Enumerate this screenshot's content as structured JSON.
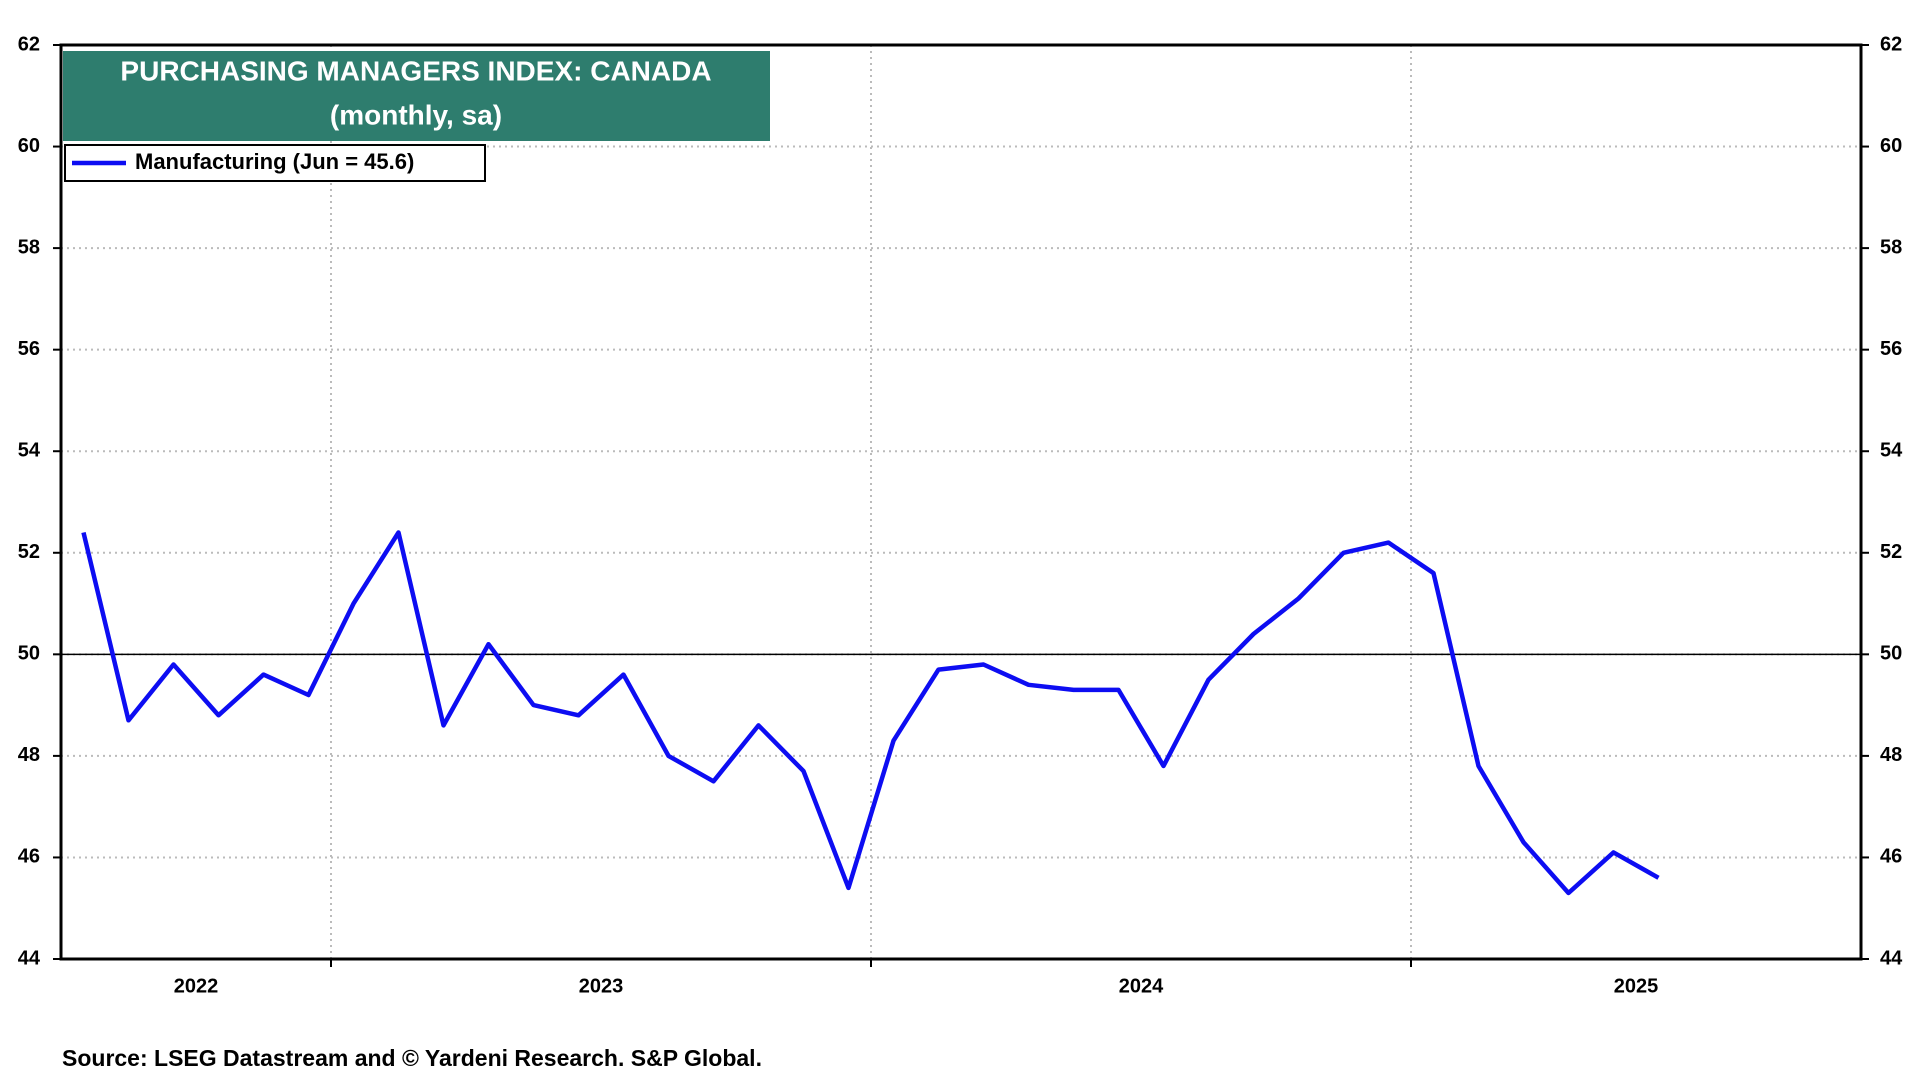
{
  "chart_data": {
    "type": "line",
    "title": "PURCHASING MANAGERS INDEX: CANADA",
    "subtitle": "(monthly, sa)",
    "source": "Source: LSEG Datastream and © Yardeni Research. S&P Global.",
    "x": [
      "2022-07",
      "2022-08",
      "2022-09",
      "2022-10",
      "2022-11",
      "2022-12",
      "2023-01",
      "2023-02",
      "2023-03",
      "2023-04",
      "2023-05",
      "2023-06",
      "2023-07",
      "2023-08",
      "2023-09",
      "2023-10",
      "2023-11",
      "2023-12",
      "2024-01",
      "2024-02",
      "2024-03",
      "2024-04",
      "2024-05",
      "2024-06",
      "2024-07",
      "2024-08",
      "2024-09",
      "2024-10",
      "2024-11",
      "2024-12",
      "2025-01",
      "2025-02",
      "2025-03",
      "2025-04",
      "2025-05",
      "2025-06"
    ],
    "series": [
      {
        "name": "Manufacturing (Jun = 45.6)",
        "color": "#0d0df2",
        "values": [
          52.4,
          48.7,
          49.8,
          48.8,
          49.6,
          49.2,
          51.0,
          52.4,
          48.6,
          50.2,
          49.0,
          48.8,
          49.6,
          48.0,
          47.5,
          48.6,
          47.7,
          45.4,
          48.3,
          49.7,
          49.8,
          49.4,
          49.3,
          49.3,
          47.8,
          49.5,
          50.4,
          51.1,
          52.0,
          52.2,
          51.6,
          47.8,
          46.3,
          45.3,
          46.1,
          45.6
        ]
      }
    ],
    "xlim": [
      "2022-07",
      "2025-10"
    ],
    "xticks": [
      2022,
      2023,
      2024,
      2025
    ],
    "ylim": [
      44,
      62
    ],
    "yticks": [
      44,
      46,
      48,
      50,
      52,
      54,
      56,
      58,
      60,
      62
    ],
    "reference_line": 50,
    "grid": true,
    "legend": "upper left"
  }
}
